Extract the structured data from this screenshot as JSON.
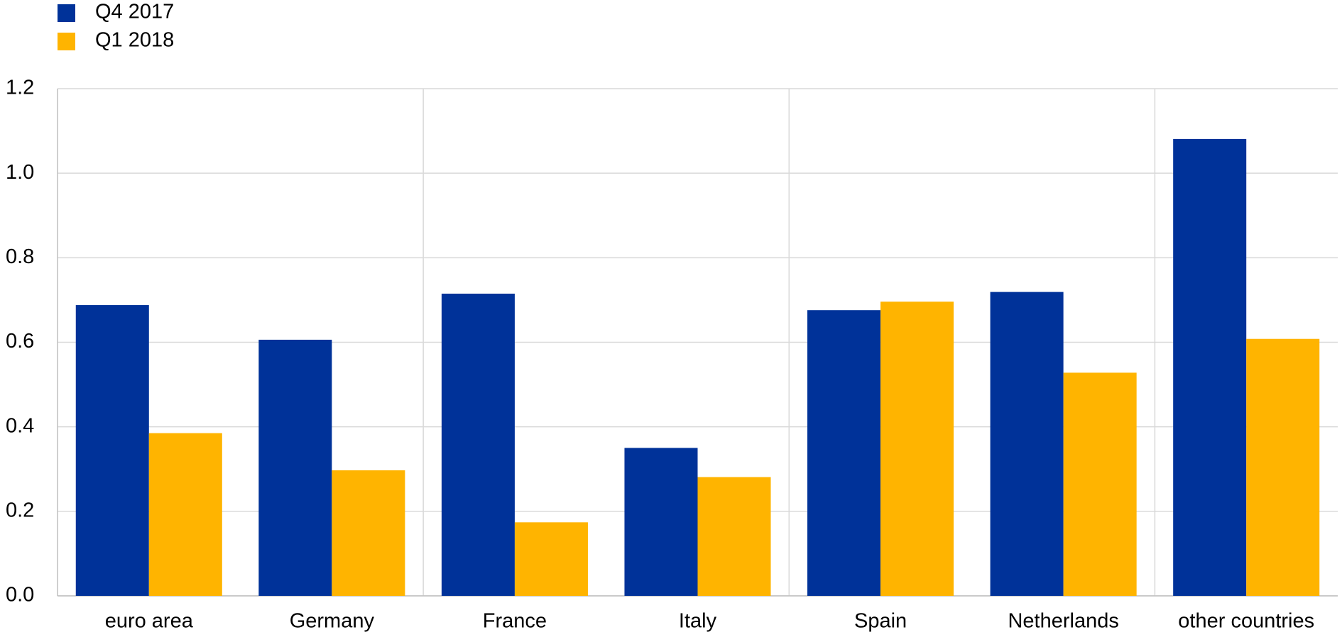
{
  "chart_data": {
    "type": "bar",
    "categories": [
      "euro area",
      "Germany",
      "France",
      "Italy",
      "Spain",
      "Netherlands",
      "other countries"
    ],
    "series": [
      {
        "name": "Q4 2017",
        "color": "#003299",
        "values": [
          0.688,
          0.606,
          0.715,
          0.35,
          0.676,
          0.719,
          1.081
        ]
      },
      {
        "name": "Q1 2018",
        "color": "#ffb400",
        "values": [
          0.385,
          0.297,
          0.174,
          0.281,
          0.696,
          0.528,
          0.608
        ]
      }
    ],
    "ylim": [
      0,
      1.2
    ],
    "yticks": [
      {
        "value": 0,
        "label": "0.0"
      },
      0.2,
      0.4,
      0.6,
      0.8,
      {
        "value": 1,
        "label": "1.0"
      },
      1.2
    ],
    "grid": true
  }
}
